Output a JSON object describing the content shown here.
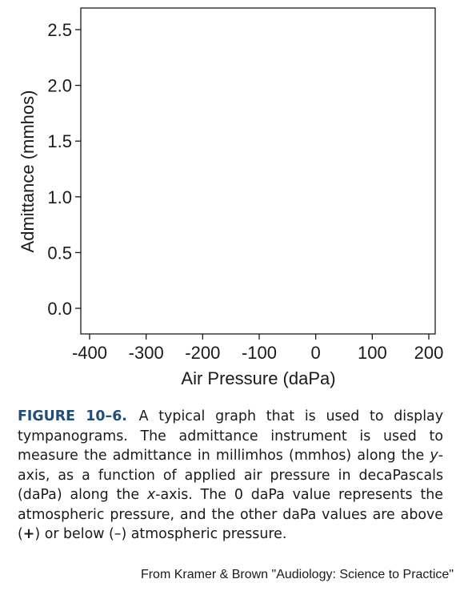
{
  "chart_data": {
    "type": "line",
    "title": "",
    "xlabel": "Air Pressure (daPa)",
    "ylabel": "Admittance (mmhos)",
    "xlim": [
      -400,
      200
    ],
    "ylim": [
      0,
      2.5
    ],
    "xticks": [
      "-400",
      "-300",
      "-200",
      "-100",
      "0",
      "100",
      "200"
    ],
    "yticks": [
      "0.0",
      "0.5",
      "1.0",
      "1.5",
      "2.0",
      "2.5"
    ],
    "grid": false,
    "series": []
  },
  "caption": {
    "label": "FIGURE 10–6.",
    "part1": " A typical graph that is used to display tympanograms. The admittance instrument is used to measure the admittance in millimhos (mmhos) along the ",
    "y_var": "y",
    "part2": "-axis, as a function of applied air pressure in decaPascals (daPa) along the ",
    "x_var": "x",
    "part3": "-axis. The 0 daPa value represents the atmospheric pressure, and the other daPa values are above (",
    "plus": "+",
    "part4": ") or below (–) atmospheric pressure."
  },
  "credit": "From Kramer & Brown \"Audiology: Science to Practice\""
}
